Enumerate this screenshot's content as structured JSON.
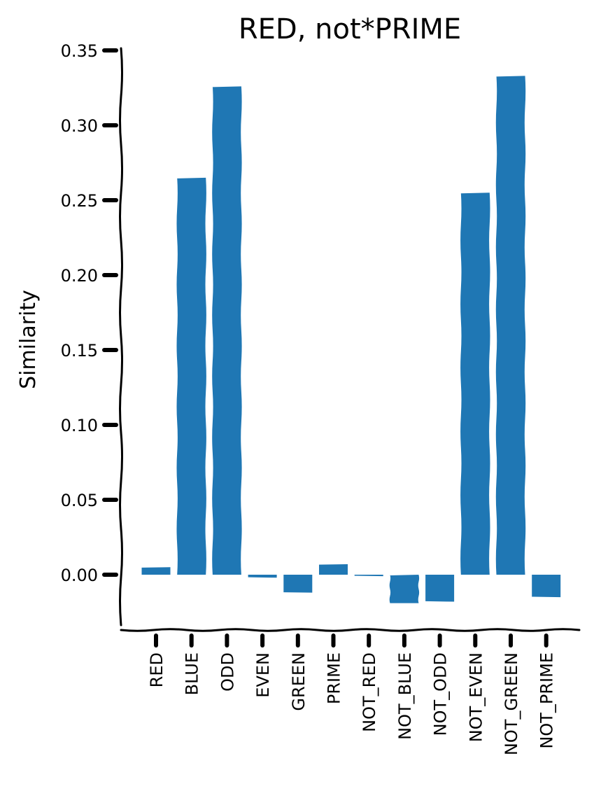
{
  "chart_data": {
    "type": "bar",
    "title": "RED, not*PRIME",
    "xlabel": "",
    "ylabel": "Similarity",
    "categories": [
      "RED",
      "BLUE",
      "ODD",
      "EVEN",
      "GREEN",
      "PRIME",
      "NOT_RED",
      "NOT_BLUE",
      "NOT_ODD",
      "NOT_EVEN",
      "NOT_GREEN",
      "NOT_PRIME"
    ],
    "values": [
      0.005,
      0.265,
      0.326,
      -0.002,
      -0.012,
      0.007,
      -0.001,
      -0.019,
      -0.018,
      0.255,
      0.333,
      -0.015
    ],
    "ylim": [
      -0.035,
      0.35
    ],
    "yticks": [
      0.0,
      0.05,
      0.1,
      0.15,
      0.2,
      0.25,
      0.3,
      0.35
    ],
    "ytick_labels": [
      "0.00",
      "0.05",
      "0.10",
      "0.15",
      "0.20",
      "0.25",
      "0.30",
      "0.35"
    ],
    "bar_color": "#1f77b4",
    "axis_color": "#000000",
    "grid": false,
    "legend": "none",
    "style": "hand-drawn (xkcd)"
  }
}
